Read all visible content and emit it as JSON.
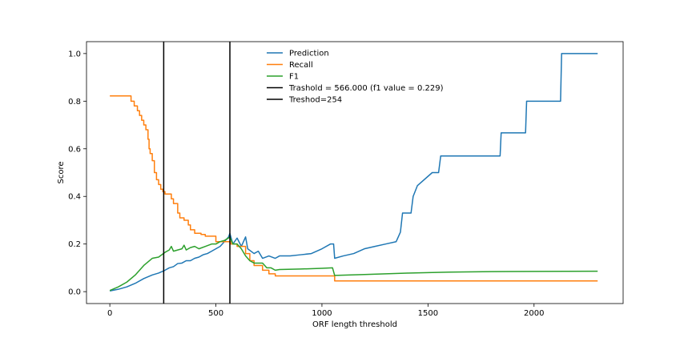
{
  "chart_data": {
    "type": "line",
    "title": "",
    "xlabel": "ORF length threshold",
    "ylabel": "Score",
    "xlim": [
      -110,
      2420
    ],
    "ylim": [
      -0.05,
      1.05
    ],
    "xticks": [
      0,
      500,
      1000,
      1500,
      2000
    ],
    "yticks": [
      0.0,
      0.2,
      0.4,
      0.6,
      0.8,
      1.0
    ],
    "xtick_labels": [
      "0",
      "500",
      "1000",
      "1500",
      "2000"
    ],
    "ytick_labels": [
      "0.0",
      "0.2",
      "0.4",
      "0.6",
      "0.8",
      "1.0"
    ],
    "grid": false,
    "legend_position": "top-center",
    "series": [
      {
        "name": "Prediction",
        "color": "#1f77b4",
        "step": false,
        "points": [
          [
            0,
            0.003
          ],
          [
            40,
            0.01
          ],
          [
            80,
            0.02
          ],
          [
            120,
            0.035
          ],
          [
            160,
            0.055
          ],
          [
            200,
            0.07
          ],
          [
            230,
            0.078
          ],
          [
            260,
            0.09
          ],
          [
            280,
            0.1
          ],
          [
            300,
            0.105
          ],
          [
            320,
            0.118
          ],
          [
            340,
            0.12
          ],
          [
            360,
            0.13
          ],
          [
            380,
            0.13
          ],
          [
            400,
            0.14
          ],
          [
            420,
            0.145
          ],
          [
            440,
            0.155
          ],
          [
            460,
            0.16
          ],
          [
            480,
            0.17
          ],
          [
            500,
            0.18
          ],
          [
            520,
            0.19
          ],
          [
            540,
            0.21
          ],
          [
            560,
            0.23
          ],
          [
            566,
            0.245
          ],
          [
            580,
            0.2
          ],
          [
            600,
            0.225
          ],
          [
            620,
            0.19
          ],
          [
            640,
            0.23
          ],
          [
            650,
            0.18
          ],
          [
            680,
            0.16
          ],
          [
            700,
            0.17
          ],
          [
            720,
            0.14
          ],
          [
            750,
            0.15
          ],
          [
            780,
            0.14
          ],
          [
            800,
            0.15
          ],
          [
            850,
            0.15
          ],
          [
            900,
            0.155
          ],
          [
            950,
            0.16
          ],
          [
            1000,
            0.18
          ],
          [
            1040,
            0.2
          ],
          [
            1055,
            0.2
          ],
          [
            1060,
            0.14
          ],
          [
            1100,
            0.15
          ],
          [
            1150,
            0.16
          ],
          [
            1200,
            0.18
          ],
          [
            1250,
            0.19
          ],
          [
            1300,
            0.2
          ],
          [
            1350,
            0.21
          ],
          [
            1370,
            0.25
          ],
          [
            1380,
            0.33
          ],
          [
            1420,
            0.33
          ],
          [
            1430,
            0.4
          ],
          [
            1450,
            0.445
          ],
          [
            1520,
            0.5
          ],
          [
            1550,
            0.5
          ],
          [
            1560,
            0.57
          ],
          [
            1840,
            0.57
          ],
          [
            1845,
            0.667
          ],
          [
            1960,
            0.667
          ],
          [
            1965,
            0.8
          ],
          [
            2125,
            0.8
          ],
          [
            2130,
            1.0
          ],
          [
            2300,
            1.0
          ]
        ]
      },
      {
        "name": "Recall",
        "color": "#ff7f0e",
        "step": true,
        "points": [
          [
            0,
            0.822
          ],
          [
            90,
            0.822
          ],
          [
            100,
            0.8
          ],
          [
            115,
            0.78
          ],
          [
            130,
            0.76
          ],
          [
            140,
            0.74
          ],
          [
            150,
            0.72
          ],
          [
            160,
            0.7
          ],
          [
            170,
            0.68
          ],
          [
            180,
            0.64
          ],
          [
            185,
            0.6
          ],
          [
            190,
            0.58
          ],
          [
            200,
            0.55
          ],
          [
            210,
            0.5
          ],
          [
            220,
            0.47
          ],
          [
            230,
            0.45
          ],
          [
            240,
            0.43
          ],
          [
            250,
            0.42
          ],
          [
            260,
            0.41
          ],
          [
            290,
            0.39
          ],
          [
            300,
            0.37
          ],
          [
            320,
            0.33
          ],
          [
            330,
            0.31
          ],
          [
            350,
            0.3
          ],
          [
            370,
            0.28
          ],
          [
            380,
            0.26
          ],
          [
            400,
            0.245
          ],
          [
            430,
            0.24
          ],
          [
            450,
            0.233
          ],
          [
            490,
            0.233
          ],
          [
            500,
            0.21
          ],
          [
            560,
            0.21
          ],
          [
            570,
            0.2
          ],
          [
            600,
            0.19
          ],
          [
            640,
            0.16
          ],
          [
            660,
            0.13
          ],
          [
            680,
            0.11
          ],
          [
            720,
            0.09
          ],
          [
            750,
            0.075
          ],
          [
            780,
            0.066
          ],
          [
            1050,
            0.066
          ],
          [
            1060,
            0.045
          ],
          [
            2300,
            0.045
          ]
        ]
      },
      {
        "name": "F1",
        "color": "#2ca02c",
        "step": false,
        "points": [
          [
            0,
            0.005
          ],
          [
            40,
            0.02
          ],
          [
            80,
            0.04
          ],
          [
            120,
            0.07
          ],
          [
            160,
            0.11
          ],
          [
            200,
            0.14
          ],
          [
            230,
            0.145
          ],
          [
            260,
            0.165
          ],
          [
            280,
            0.175
          ],
          [
            290,
            0.19
          ],
          [
            300,
            0.17
          ],
          [
            320,
            0.175
          ],
          [
            340,
            0.18
          ],
          [
            350,
            0.195
          ],
          [
            360,
            0.175
          ],
          [
            380,
            0.185
          ],
          [
            400,
            0.19
          ],
          [
            420,
            0.18
          ],
          [
            450,
            0.19
          ],
          [
            480,
            0.2
          ],
          [
            500,
            0.2
          ],
          [
            520,
            0.21
          ],
          [
            540,
            0.215
          ],
          [
            566,
            0.229
          ],
          [
            580,
            0.2
          ],
          [
            600,
            0.2
          ],
          [
            620,
            0.18
          ],
          [
            640,
            0.15
          ],
          [
            660,
            0.13
          ],
          [
            680,
            0.12
          ],
          [
            700,
            0.12
          ],
          [
            720,
            0.12
          ],
          [
            740,
            0.1
          ],
          [
            760,
            0.1
          ],
          [
            780,
            0.09
          ],
          [
            800,
            0.093
          ],
          [
            900,
            0.095
          ],
          [
            1000,
            0.098
          ],
          [
            1050,
            0.1
          ],
          [
            1060,
            0.068
          ],
          [
            1200,
            0.072
          ],
          [
            1400,
            0.078
          ],
          [
            1600,
            0.082
          ],
          [
            1800,
            0.084
          ],
          [
            2000,
            0.085
          ],
          [
            2300,
            0.086
          ]
        ]
      }
    ],
    "vlines": [
      {
        "name": "Trashold = 566.000 (f1 value = 0.229)",
        "x": 566,
        "color": "#000000"
      },
      {
        "name": "Treshod=254",
        "x": 254,
        "color": "#000000"
      }
    ]
  }
}
